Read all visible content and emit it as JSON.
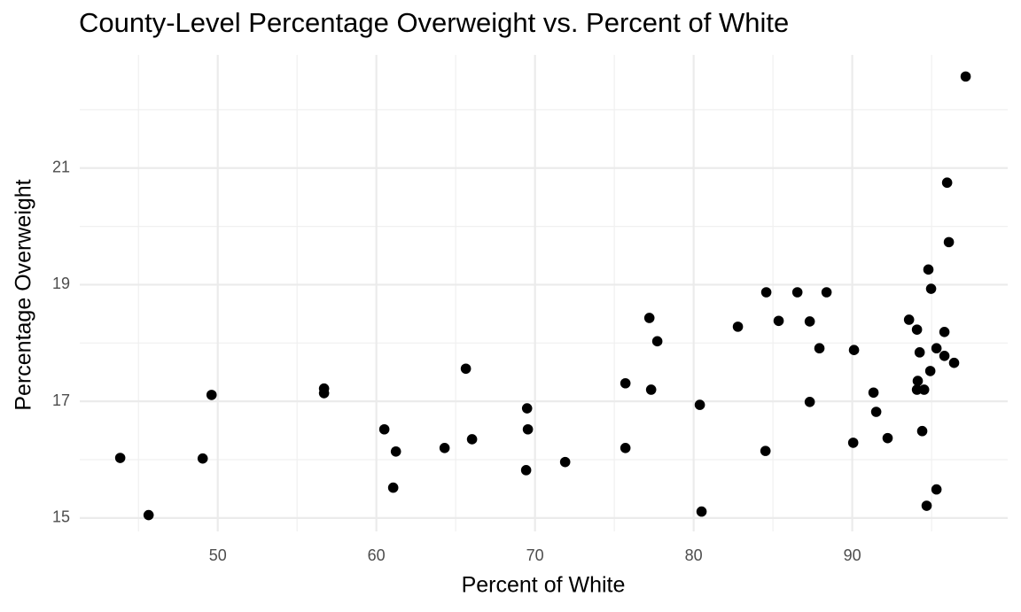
{
  "chart_data": {
    "type": "scatter",
    "title": "County-Level Percentage Overweight vs. Percent of White",
    "x_label": "Percent of White",
    "y_label": "Percentage Overweight",
    "color": "#000000",
    "grid": true,
    "xlim": [
      41.3,
      99.8
    ],
    "ylim": [
      14.77,
      22.94
    ],
    "xticks": [
      50,
      60,
      70,
      80,
      90
    ],
    "yticks": [
      15,
      17,
      19,
      21
    ],
    "x_minor_gridlines": [
      45,
      55,
      65,
      75,
      85,
      95
    ],
    "y_minor_gridlines": [
      16,
      18,
      20,
      22
    ],
    "x": [
      43.85,
      45.64,
      49.05,
      49.61,
      56.7,
      56.7,
      60.5,
      61.23,
      61.06,
      64.3,
      66.03,
      65.64,
      69.5,
      69.55,
      69.44,
      71.9,
      75.7,
      75.7,
      77.21,
      77.32,
      77.71,
      80.39,
      80.5,
      82.79,
      84.58,
      84.53,
      85.36,
      86.54,
      87.32,
      87.32,
      87.93,
      88.38,
      90.11,
      90.06,
      91.34,
      91.51,
      92.23,
      93.58,
      94.08,
      94.25,
      94.13,
      94.08,
      94.53,
      94.41,
      94.69,
      94.8,
      94.97,
      94.92,
      95.31,
      95.31,
      95.81,
      95.81,
      96.42,
      95.98,
      96.09,
      97.15
    ],
    "y": [
      16.03,
      15.05,
      16.02,
      17.11,
      17.22,
      17.14,
      16.52,
      16.14,
      15.52,
      16.2,
      16.35,
      17.56,
      16.88,
      16.52,
      15.82,
      15.96,
      17.31,
      16.2,
      18.43,
      17.2,
      18.03,
      16.94,
      15.11,
      18.28,
      18.87,
      16.15,
      18.38,
      18.87,
      18.37,
      16.99,
      17.91,
      18.87,
      17.88,
      16.29,
      17.15,
      16.82,
      16.37,
      18.4,
      18.23,
      17.84,
      17.35,
      17.2,
      17.2,
      16.49,
      15.21,
      19.26,
      18.93,
      17.52,
      17.91,
      15.49,
      18.19,
      17.78,
      17.66,
      20.75,
      19.73,
      22.57
    ]
  }
}
